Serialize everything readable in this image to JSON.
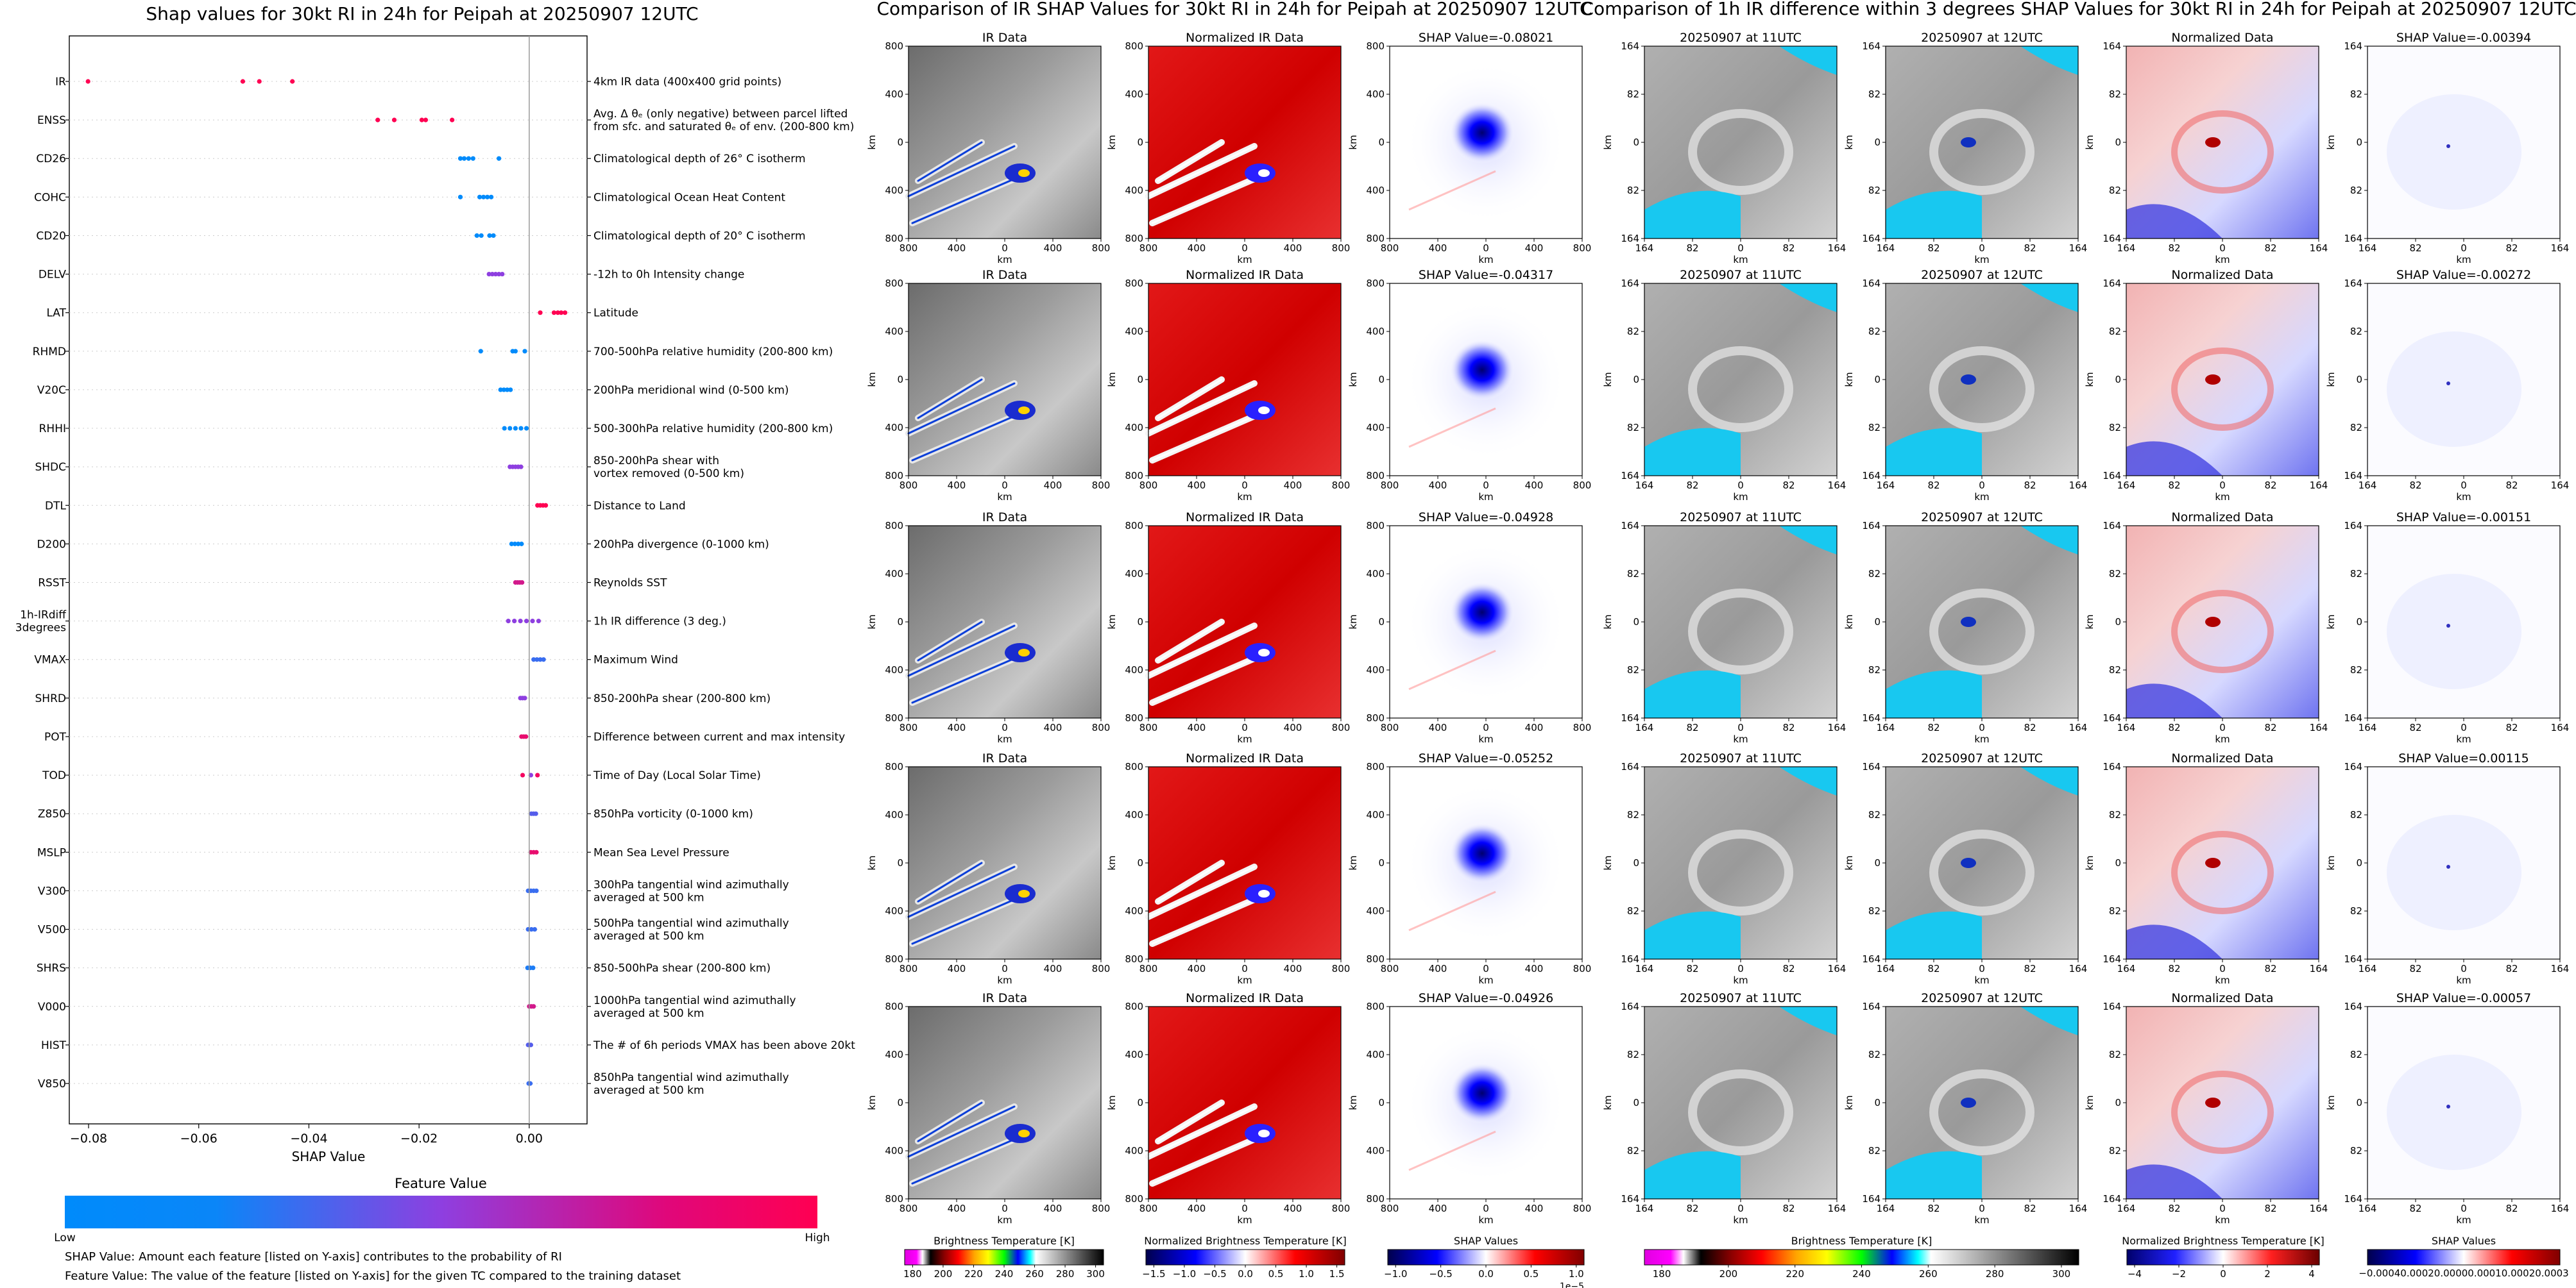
{
  "colors": {
    "low": "#008bfb",
    "mid": "#8e3fe0",
    "high": "#ff0052",
    "axis": "#333333",
    "grid": "#bbbbbb",
    "zero_line": "#999999"
  },
  "colorbars": {
    "feature_value": {
      "title": "Feature Value",
      "low": "Low",
      "high": "High"
    },
    "ir": {
      "label": "Brightness Temperature [K]",
      "ticks": [
        "180",
        "200",
        "220",
        "240",
        "260",
        "280",
        "300"
      ]
    },
    "norm_ir": {
      "label": "Normalized Brightness Temperature [K]",
      "ticks": [
        "−1.5",
        "−1.0",
        "−0.5",
        "0.0",
        "0.5",
        "1.0",
        "1.5"
      ]
    },
    "shap": {
      "label": "SHAP Values",
      "ticks": [
        "−1.0",
        "−0.5",
        "0.0",
        "0.5",
        "1.0"
      ],
      "multiplier": "1e−5"
    },
    "ir2": {
      "label": "Brightness Temperature [K]",
      "ticks": [
        "180",
        "200",
        "220",
        "240",
        "260",
        "280",
        "300"
      ]
    },
    "norm2": {
      "label": "Normalized Brightness Temperature [K]",
      "ticks": [
        "−4",
        "−2",
        "0",
        "2",
        "4"
      ]
    },
    "shap2": {
      "label": "SHAP Values",
      "ticks": [
        "−0.0004",
        "−0.0002",
        "0.0000",
        "0.0002",
        "0.0003"
      ],
      "tick_text": "−0.00040.00020.00000.00010.00020.0003"
    }
  },
  "footnotes": [
    "SHAP Value: Amount each feature [listed on Y-axis] contributes to the probability of RI",
    "Feature Value: The value of the feature [listed on Y-axis] for the given TC compared to the training dataset"
  ],
  "section_titles": {
    "middle": "Comparison of IR SHAP Values for 30kt RI in 24h for Peipah at 20250907 12UTC",
    "right": "Comparison of 1h IR difference within 3 degrees SHAP Values for 30kt RI in 24h for Peipah at 20250907 12UTC"
  },
  "ir_panels": {
    "col_titles": [
      "IR Data",
      "Normalized IR Data"
    ],
    "shap_titles": [
      "SHAP Value=-0.08021",
      "SHAP Value=-0.04317",
      "SHAP Value=-0.04928",
      "SHAP Value=-0.05252",
      "SHAP Value=-0.04926"
    ],
    "ticks": [
      "800",
      "400",
      "0",
      "400",
      "800"
    ],
    "axis_label": "km"
  },
  "diff_panels": {
    "col_titles": [
      "20250907 at 11UTC",
      "20250907 at 12UTC",
      "Normalized Data"
    ],
    "shap_titles": [
      "SHAP Value=-0.00394",
      "SHAP Value=-0.00272",
      "SHAP Value=-0.00151",
      "SHAP Value=0.00115",
      "SHAP Value=-0.00057"
    ],
    "ticks": [
      "164",
      "82",
      "0",
      "82",
      "164"
    ],
    "axis_label": "km"
  },
  "chart_data": {
    "type": "scatter",
    "title": "Shap values for 30kt RI in 24h for Peipah at 20250907 12UTC",
    "xlabel": "SHAP Value",
    "ylabel": "",
    "xlim": [
      -0.0835,
      0.0105
    ],
    "xticks": [
      -0.08,
      -0.06,
      -0.04,
      -0.02,
      0.0
    ],
    "xtick_labels": [
      "−0.08",
      "−0.06",
      "−0.04",
      "−0.02",
      "0.00"
    ],
    "grid": false,
    "features": [
      {
        "name": "IR",
        "description": "4km IR data (400x400 grid points)",
        "points": [
          [
            -0.0801,
            1.0
          ],
          [
            -0.052,
            1.0
          ],
          [
            -0.049,
            1.0
          ],
          [
            -0.043,
            1.0
          ]
        ]
      },
      {
        "name": "ENSS",
        "description": "Avg. Δ θₑ (only negative) between parcel lifted\nfrom sfc. and saturated θₑ of env. (200-800 km)",
        "points": [
          [
            -0.0275,
            1.0
          ],
          [
            -0.0245,
            1.0
          ],
          [
            -0.0195,
            1.0
          ],
          [
            -0.0188,
            1.0
          ],
          [
            -0.014,
            1.0
          ]
        ]
      },
      {
        "name": "CD26",
        "description": "Climatological depth of 26° C isotherm",
        "points": [
          [
            -0.0125,
            0.0
          ],
          [
            -0.0118,
            0.0
          ],
          [
            -0.011,
            0.0
          ],
          [
            -0.0102,
            0.0
          ],
          [
            -0.0055,
            0.0
          ]
        ]
      },
      {
        "name": "COHC",
        "description": "Climatological Ocean Heat Content",
        "points": [
          [
            -0.0125,
            0.0
          ],
          [
            -0.009,
            0.0
          ],
          [
            -0.0083,
            0.0
          ],
          [
            -0.0076,
            0.0
          ],
          [
            -0.0069,
            0.0
          ]
        ]
      },
      {
        "name": "CD20",
        "description": "Climatological depth of 20° C isotherm",
        "points": [
          [
            -0.0095,
            0.0
          ],
          [
            -0.0087,
            0.0
          ],
          [
            -0.0072,
            0.0
          ],
          [
            -0.0065,
            0.0
          ]
        ]
      },
      {
        "name": "DELV",
        "description": "-12h to 0h Intensity change",
        "points": [
          [
            -0.0073,
            0.5
          ],
          [
            -0.0067,
            0.5
          ],
          [
            -0.0061,
            0.5
          ],
          [
            -0.0055,
            0.5
          ],
          [
            -0.0049,
            0.5
          ]
        ]
      },
      {
        "name": "LAT",
        "description": "Latitude",
        "points": [
          [
            0.002,
            1.0
          ],
          [
            0.0045,
            1.0
          ],
          [
            0.0052,
            1.0
          ],
          [
            0.0058,
            1.0
          ],
          [
            0.0065,
            1.0
          ]
        ]
      },
      {
        "name": "RHMD",
        "description": "700-500hPa relative humidity (200-800 km)",
        "points": [
          [
            -0.0088,
            0.0
          ],
          [
            -0.003,
            0.0
          ],
          [
            -0.0025,
            0.0
          ],
          [
            -0.0008,
            0.0
          ]
        ]
      },
      {
        "name": "V20C",
        "description": "200hPa meridional wind (0-500 km)",
        "points": [
          [
            -0.0052,
            0.0
          ],
          [
            -0.0046,
            0.0
          ],
          [
            -0.004,
            0.0
          ],
          [
            -0.0034,
            0.0
          ]
        ]
      },
      {
        "name": "RHHI",
        "description": "500-300hPa relative humidity (200-800 km)",
        "points": [
          [
            -0.0045,
            0.0
          ],
          [
            -0.0035,
            0.0
          ],
          [
            -0.0025,
            0.0
          ],
          [
            -0.0015,
            0.0
          ],
          [
            -0.0005,
            0.0
          ]
        ]
      },
      {
        "name": "SHDC",
        "description": "850-200hPa shear with\nvortex removed (0-500 km)",
        "points": [
          [
            -0.0035,
            0.5
          ],
          [
            -0.003,
            0.5
          ],
          [
            -0.0025,
            0.5
          ],
          [
            -0.002,
            0.5
          ],
          [
            -0.0015,
            0.5
          ]
        ]
      },
      {
        "name": "DTL",
        "description": "Distance to Land",
        "points": [
          [
            0.0015,
            1.0
          ],
          [
            0.002,
            1.0
          ],
          [
            0.0025,
            1.0
          ],
          [
            0.003,
            1.0
          ]
        ]
      },
      {
        "name": "D200",
        "description": "200hPa divergence (0-1000 km)",
        "points": [
          [
            -0.0032,
            0.0
          ],
          [
            -0.0026,
            0.0
          ],
          [
            -0.002,
            0.0
          ],
          [
            -0.0014,
            0.0
          ]
        ]
      },
      {
        "name": "RSST",
        "description": "Reynolds SST",
        "points": [
          [
            -0.0025,
            0.8
          ],
          [
            -0.0021,
            0.8
          ],
          [
            -0.0017,
            0.8
          ],
          [
            -0.0013,
            0.8
          ]
        ]
      },
      {
        "name": "1h-IRdiff\n3degrees",
        "description": "1h IR difference (3 deg.)",
        "points": [
          [
            -0.0038,
            0.5
          ],
          [
            -0.0027,
            0.5
          ],
          [
            -0.0016,
            0.5
          ],
          [
            -0.0005,
            0.5
          ],
          [
            0.0006,
            0.5
          ],
          [
            0.0017,
            0.5
          ]
        ]
      },
      {
        "name": "VMAX",
        "description": "Maximum Wind",
        "points": [
          [
            0.0008,
            0.2
          ],
          [
            0.0014,
            0.2
          ],
          [
            0.002,
            0.2
          ],
          [
            0.0026,
            0.2
          ]
        ]
      },
      {
        "name": "SHRD",
        "description": "850-200hPa shear (200-800 km)",
        "points": [
          [
            -0.0016,
            0.5
          ],
          [
            -0.0012,
            0.5
          ],
          [
            -0.0008,
            0.5
          ]
        ]
      },
      {
        "name": "POT",
        "description": "Difference between current and max intensity",
        "points": [
          [
            -0.0014,
            0.9
          ],
          [
            -0.001,
            0.9
          ],
          [
            -0.0006,
            0.9
          ]
        ]
      },
      {
        "name": "TOD",
        "description": "Time of Day (Local Solar Time)",
        "points": [
          [
            -0.0012,
            0.95
          ],
          [
            0.0003,
            0.5
          ],
          [
            0.0015,
            0.95
          ]
        ]
      },
      {
        "name": "Z850",
        "description": "850hPa vorticity (0-1000 km)",
        "points": [
          [
            0.0004,
            0.3
          ],
          [
            0.0008,
            0.3
          ],
          [
            0.0012,
            0.3
          ]
        ]
      },
      {
        "name": "MSLP",
        "description": "Mean Sea Level Pressure",
        "points": [
          [
            0.0003,
            0.9
          ],
          [
            0.0008,
            0.9
          ],
          [
            0.0013,
            0.9
          ]
        ]
      },
      {
        "name": "V300",
        "description": "300hPa tangential wind azimuthally\naveraged at 500 km",
        "points": [
          [
            -0.0002,
            0.2
          ],
          [
            0.0003,
            0.2
          ],
          [
            0.0008,
            0.2
          ],
          [
            0.0013,
            0.2
          ]
        ]
      },
      {
        "name": "V500",
        "description": "500hPa tangential wind azimuthally\naveraged at 500 km",
        "points": [
          [
            -0.0002,
            0.2
          ],
          [
            0.0004,
            0.2
          ],
          [
            0.001,
            0.2
          ]
        ]
      },
      {
        "name": "SHRS",
        "description": "850-500hPa shear (200-800 km)",
        "points": [
          [
            -0.0003,
            0.1
          ],
          [
            0.0002,
            0.1
          ],
          [
            0.0007,
            0.1
          ]
        ]
      },
      {
        "name": "V000",
        "description": "1000hPa tangential wind azimuthally\naveraged at 500 km",
        "points": [
          [
            0.0,
            0.8
          ],
          [
            0.0004,
            0.8
          ],
          [
            0.0008,
            0.8
          ]
        ]
      },
      {
        "name": "HIST",
        "description": "The # of 6h periods VMAX has been above 20kt",
        "points": [
          [
            -0.0002,
            0.3
          ],
          [
            0.0,
            0.3
          ],
          [
            0.0003,
            0.3
          ]
        ]
      },
      {
        "name": "V850",
        "description": "850hPa tangential wind azimuthally\naveraged at 500 km",
        "points": [
          [
            -0.0001,
            0.2
          ],
          [
            0.0002,
            0.2
          ]
        ]
      }
    ]
  }
}
